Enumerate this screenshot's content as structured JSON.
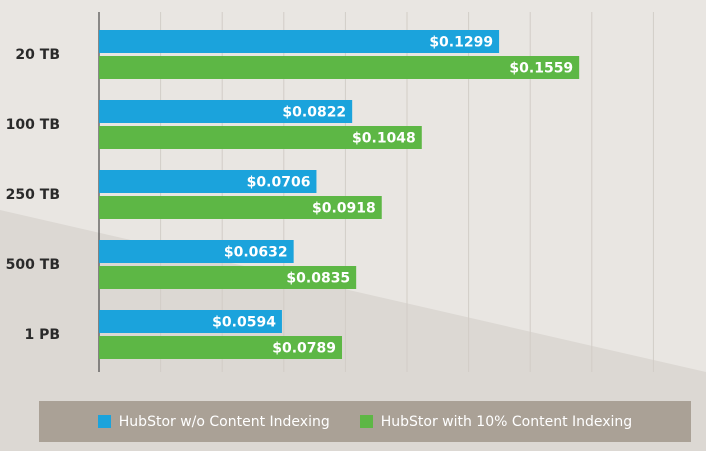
{
  "chart_data": {
    "type": "bar",
    "orientation": "horizontal",
    "categories": [
      "20 TB",
      "100 TB",
      "250 TB",
      "500 TB",
      "1 PB"
    ],
    "series": [
      {
        "name": "HubStor w/o Content Indexing",
        "color": "#1ba3dc",
        "values": [
          0.1299,
          0.0822,
          0.0706,
          0.0632,
          0.0594
        ],
        "labels": [
          "$0.1299",
          "$0.0822",
          "$0.0706",
          "$0.0632",
          "$0.0594"
        ]
      },
      {
        "name": "HubStor with 10% Content Indexing",
        "color": "#5db745",
        "values": [
          0.1559,
          0.1048,
          0.0918,
          0.0835,
          0.0789
        ],
        "labels": [
          "$0.1559",
          "$0.1048",
          "$0.0918",
          "$0.0835",
          "$0.0789"
        ]
      }
    ],
    "xlim": [
      0,
      0.2
    ],
    "grid": true,
    "legend_position": "bottom"
  },
  "legend": {
    "items": [
      {
        "label": "HubStor w/o Content Indexing",
        "color": "#1ba3dc"
      },
      {
        "label": "HubStor with 10% Content Indexing",
        "color": "#5db745"
      }
    ]
  }
}
